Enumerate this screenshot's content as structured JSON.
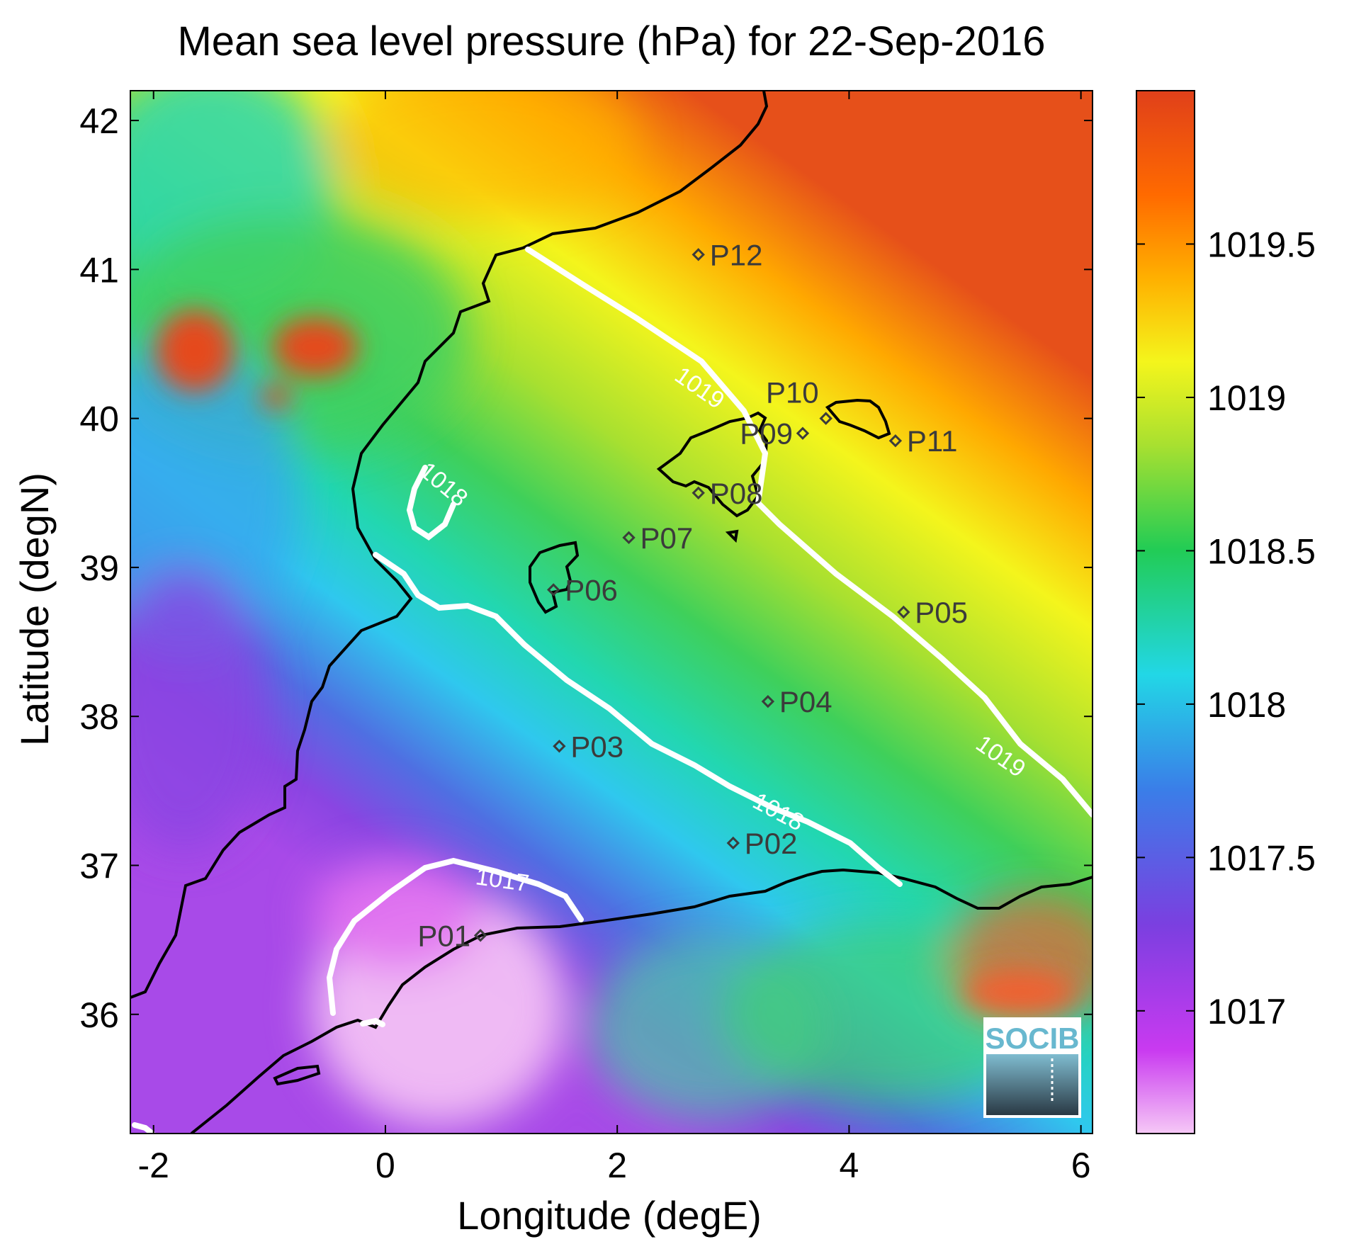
{
  "title": "Mean sea level pressure (hPa) for 22-Sep-2016",
  "xlabel": "Longitude (degE)",
  "ylabel": "Latitude (degN)",
  "x_ticks": [
    "-2",
    "0",
    "2",
    "4",
    "6"
  ],
  "y_ticks": [
    "36",
    "37",
    "38",
    "39",
    "40",
    "41",
    "42"
  ],
  "colorbar": {
    "ticks": [
      "1017",
      "1017.5",
      "1018",
      "1018.5",
      "1019",
      "1019.5"
    ],
    "range": [
      1016.6,
      1020.0
    ]
  },
  "contours": [
    {
      "label": "1019"
    },
    {
      "label": "1018"
    },
    {
      "label": "1017"
    }
  ],
  "points": [
    {
      "name": "P01",
      "lon": 0.82,
      "lat": 36.53
    },
    {
      "name": "P02",
      "lon": 3.0,
      "lat": 37.15
    },
    {
      "name": "P03",
      "lon": 1.5,
      "lat": 37.8
    },
    {
      "name": "P04",
      "lon": 3.3,
      "lat": 38.1
    },
    {
      "name": "P05",
      "lon": 4.47,
      "lat": 38.7
    },
    {
      "name": "P06",
      "lon": 1.45,
      "lat": 38.85
    },
    {
      "name": "P07",
      "lon": 2.1,
      "lat": 39.2
    },
    {
      "name": "P08",
      "lon": 2.7,
      "lat": 39.5
    },
    {
      "name": "P09",
      "lon": 3.6,
      "lat": 39.9
    },
    {
      "name": "P10",
      "lon": 3.8,
      "lat": 40.0
    },
    {
      "name": "P11",
      "lon": 4.4,
      "lat": 39.85
    },
    {
      "name": "P12",
      "lon": 2.7,
      "lat": 41.1
    }
  ],
  "logo": {
    "text": "SOCIB"
  },
  "chart_data": {
    "type": "heatmap",
    "title": "Mean sea level pressure (hPa) for 22-Sep-2016",
    "xlabel": "Longitude (degE)",
    "ylabel": "Latitude (degN)",
    "xlim": [
      -2.2,
      6.1
    ],
    "ylim": [
      35.2,
      42.2
    ],
    "colorbar_range": [
      1016.6,
      1020.0
    ],
    "colorbar_ticks": [
      1017,
      1017.5,
      1018,
      1018.5,
      1019,
      1019.5
    ],
    "contour_levels": [
      1017,
      1018,
      1019
    ],
    "colormap": [
      "#f6c8f6",
      "#c93af0",
      "#7b3fe0",
      "#3a7ee8",
      "#22d7e6",
      "#22cc55",
      "#a8e030",
      "#f4f51c",
      "#ffb000",
      "#ff6a00",
      "#e0401a"
    ]
  }
}
